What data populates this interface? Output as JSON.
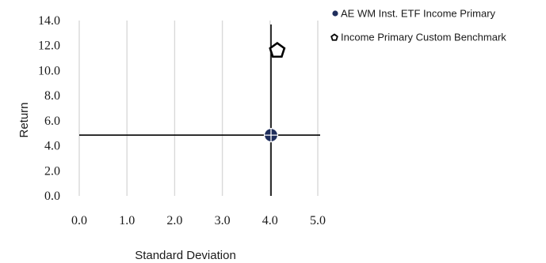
{
  "chart_data": {
    "type": "scatter",
    "xlabel": "Standard Deviation",
    "ylabel": "Return",
    "xlim": [
      0,
      5
    ],
    "ylim": [
      0,
      14
    ],
    "x_ticks": [
      "0.0",
      "1.0",
      "2.0",
      "3.0",
      "4.0",
      "5.0"
    ],
    "y_ticks": [
      "0.0",
      "2.0",
      "4.0",
      "6.0",
      "8.0",
      "10.0",
      "12.0",
      "14.0"
    ],
    "grid": "vertical",
    "legend_position": "top-right",
    "crosshair": {
      "x": 4.02,
      "y": 4.85
    },
    "series": [
      {
        "name": "AE WM Inst. ETF Income Primary",
        "marker": "circle",
        "color": "#1f2e5c",
        "points": [
          {
            "x": 4.02,
            "y": 4.85
          }
        ]
      },
      {
        "name": "Income Primary Custom Benchmark",
        "marker": "pentagon",
        "color": "#000000",
        "points": [
          {
            "x": 4.15,
            "y": 11.6
          }
        ]
      }
    ]
  }
}
